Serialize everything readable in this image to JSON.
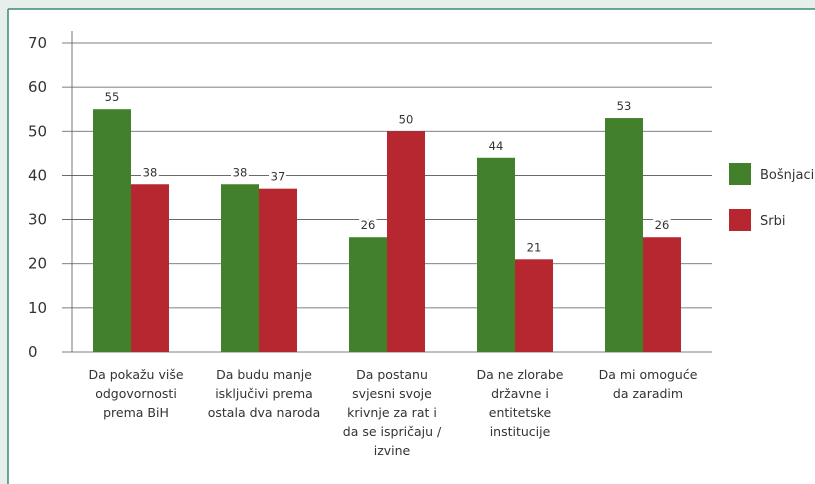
{
  "chart_data": {
    "type": "bar",
    "categories": [
      [
        "Da pokažu više",
        "odgovornosti",
        "prema BiH"
      ],
      [
        "Da budu manje",
        "isključivi prema",
        "ostala dva naroda"
      ],
      [
        "Da postanu",
        "svjesni svoje",
        "krivnje za rat i",
        "da se ispričaju /",
        "izvine"
      ],
      [
        "Da ne zlorabe",
        "državne i",
        "entitetske",
        "institucije"
      ],
      [
        "Da mi omoguće",
        "da zaradim"
      ]
    ],
    "series": [
      {
        "name": "Bošnjaci",
        "color": "#43802c",
        "values": [
          55,
          38,
          26,
          44,
          53
        ]
      },
      {
        "name": "Srbi",
        "color": "#b7272f",
        "values": [
          38,
          37,
          50,
          21,
          26
        ]
      }
    ],
    "ylim": [
      0,
      70
    ],
    "yticks": [
      0,
      10,
      20,
      30,
      40,
      50,
      60,
      70
    ],
    "grid": true,
    "legend": "right"
  }
}
